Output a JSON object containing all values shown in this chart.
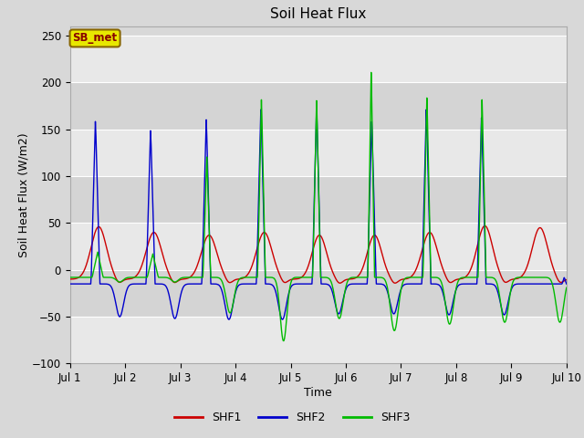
{
  "title": "Soil Heat Flux",
  "xlabel": "Time",
  "ylabel": "Soil Heat Flux (W/m2)",
  "ylim": [
    -100,
    260
  ],
  "yticks": [
    -100,
    -50,
    0,
    50,
    100,
    150,
    200,
    250
  ],
  "xtick_labels": [
    "Jul 1",
    "Jul 2",
    "Jul 3",
    "Jul 4",
    "Jul 5",
    "Jul 6",
    "Jul 7",
    "Jul 8",
    "Jul 9",
    "Jul 10"
  ],
  "colors": {
    "SHF1": "#cc0000",
    "SHF2": "#0000cc",
    "SHF3": "#00bb00"
  },
  "legend_label": "SB_met",
  "fig_bg_color": "#d8d8d8",
  "plot_bg_color": "#d8d8d8",
  "grid_color": "#ffffff",
  "annotation_box_facecolor": "#e8e800",
  "annotation_box_edgecolor": "#886600",
  "annotation_text_color": "#880000",
  "title_fontsize": 11,
  "axis_label_fontsize": 9,
  "tick_fontsize": 8.5
}
